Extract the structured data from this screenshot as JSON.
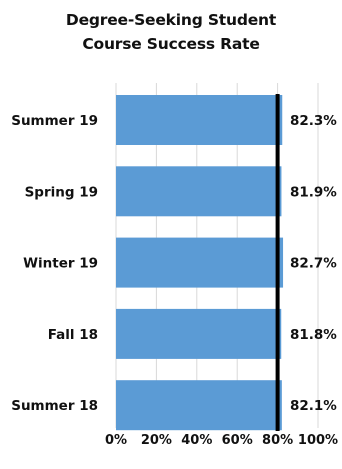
{
  "chart_data": {
    "type": "bar",
    "orientation": "horizontal",
    "title_lines": [
      "Degree-Seeking Student",
      "Course Success Rate"
    ],
    "categories": [
      "Summer 19",
      "Spring 19",
      "Winter 19",
      "Fall 18",
      "Summer 18"
    ],
    "values": [
      82.3,
      81.9,
      82.7,
      81.8,
      82.1
    ],
    "value_labels": [
      "82.3%",
      "81.9%",
      "82.7%",
      "81.8%",
      "82.1%"
    ],
    "x_ticks": [
      0,
      20,
      40,
      60,
      80,
      100
    ],
    "x_tick_labels": [
      "0%",
      "20%",
      "40%",
      "60%",
      "80%",
      "100%"
    ],
    "xlim": [
      0,
      100
    ],
    "reference_line": 80,
    "grid": true,
    "bar_color": "#5b9bd5",
    "reference_line_color": "#000000",
    "gridline_color": "#d9d9d9"
  }
}
